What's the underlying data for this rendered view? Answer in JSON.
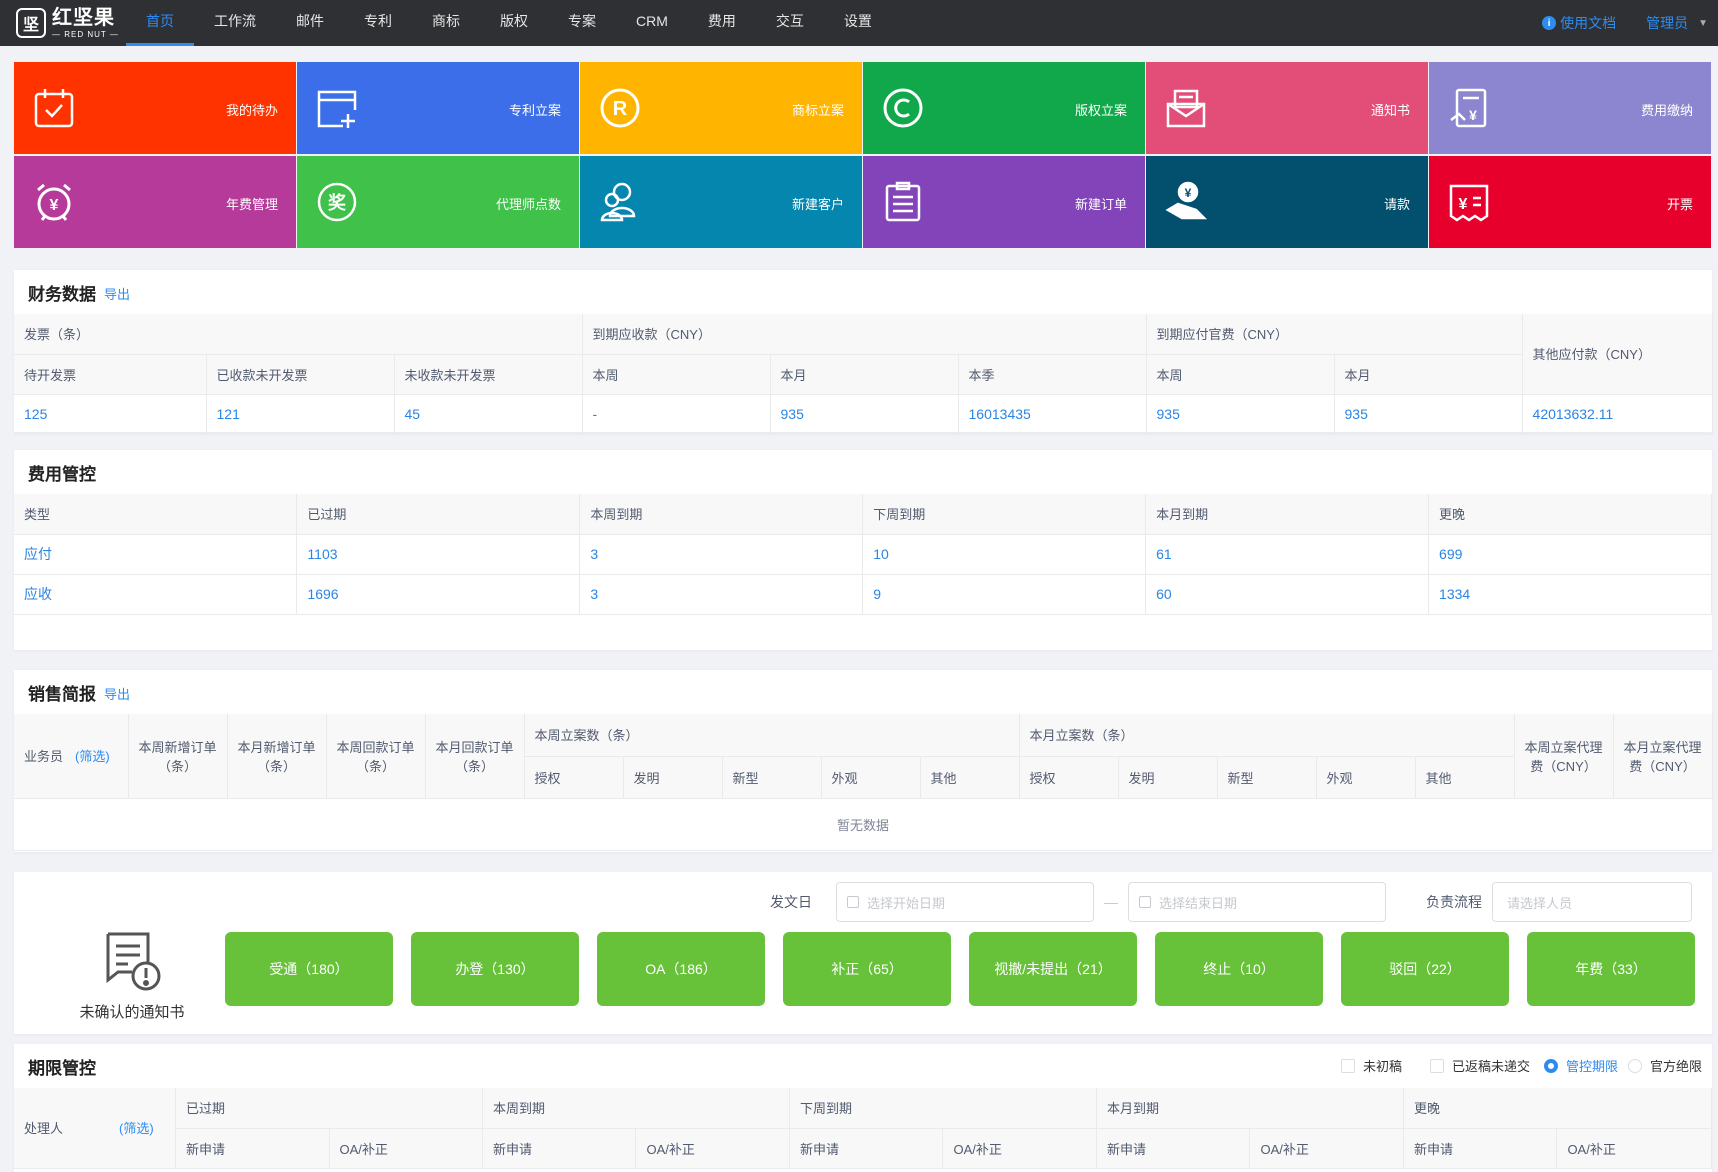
{
  "app": {
    "logo_cn": "红坚果",
    "logo_en": "— RED NUT —",
    "logo_mark": "坚"
  },
  "nav": {
    "items": [
      {
        "label": "首页",
        "active": true
      },
      {
        "label": "工作流"
      },
      {
        "label": "邮件"
      },
      {
        "label": "专利"
      },
      {
        "label": "商标"
      },
      {
        "label": "版权"
      },
      {
        "label": "专案"
      },
      {
        "label": "CRM"
      },
      {
        "label": "费用"
      },
      {
        "label": "交互"
      },
      {
        "label": "设置"
      }
    ],
    "doc": "使用文档",
    "admin": "管理员"
  },
  "tiles": [
    {
      "label": "我的待办",
      "color": "#ff3300",
      "icon": "calendar-check-icon"
    },
    {
      "label": "专利立案",
      "color": "#3b6ee8",
      "icon": "window-add-icon"
    },
    {
      "label": "商标立案",
      "color": "#ffb400",
      "icon": "registered-icon"
    },
    {
      "label": "版权立案",
      "color": "#10a84a",
      "icon": "copyright-icon"
    },
    {
      "label": "通知书",
      "color": "#e24e77",
      "icon": "mail-icon"
    },
    {
      "label": "费用缴纳",
      "color": "#8b86cf",
      "icon": "bill-pay-icon"
    },
    {
      "label": "年费管理",
      "color": "#b63a9a",
      "icon": "alarm-yen-icon"
    },
    {
      "label": "代理师点数",
      "color": "#3fc14a",
      "icon": "award-icon"
    },
    {
      "label": "新建客户",
      "color": "#0586af",
      "icon": "users-icon"
    },
    {
      "label": "新建订单",
      "color": "#8244b8",
      "icon": "order-list-icon"
    },
    {
      "label": "请款",
      "color": "#03506e",
      "icon": "hand-money-icon"
    },
    {
      "label": "开票",
      "color": "#e8002d",
      "icon": "invoice-icon"
    }
  ],
  "finance": {
    "title": "财务数据",
    "export": "导出",
    "g1": "发票（条）",
    "g2": "到期应收款（CNY）",
    "g3": "到期应付官费（CNY）",
    "g4": "其他应付款（CNY）",
    "cols": [
      "待开发票",
      "已收款未开发票",
      "未收款未开发票",
      "本周",
      "本月",
      "本季",
      "本周",
      "本月"
    ],
    "values": [
      "125",
      "121",
      "45",
      "-",
      "935",
      "16013435",
      "935",
      "935",
      "42013632.11"
    ]
  },
  "fee": {
    "title": "费用管控",
    "headers": [
      "类型",
      "已过期",
      "本周到期",
      "下周到期",
      "本月到期",
      "更晚"
    ],
    "rows": [
      [
        "应付",
        "1103",
        "3",
        "10",
        "61",
        "699"
      ],
      [
        "应收",
        "1696",
        "3",
        "9",
        "60",
        "1334"
      ]
    ]
  },
  "sales": {
    "title": "销售简报",
    "export": "导出",
    "salesman": "业务员",
    "filter": "(筛选)",
    "c1": "本周新增订单（条）",
    "c2": "本月新增订单（条）",
    "c3": "本周回款订单（条）",
    "c4": "本月回款订单（条）",
    "week": "本周立案数（条）",
    "month": "本月立案数（条）",
    "sub": [
      "授权",
      "发明",
      "新型",
      "外观",
      "其他"
    ],
    "fee_week": "本周立案代理费（CNY）",
    "fee_month": "本月立案代理费（CNY）",
    "empty": "暂无数据"
  },
  "notice": {
    "date_label": "发文日",
    "start_ph": "选择开始日期",
    "end_ph": "选择结束日期",
    "sep": "—",
    "flow_label": "负责流程",
    "person_ph": "请选择人员",
    "caption": "未确认的通知书",
    "buttons": [
      "受通（180）",
      "办登（130）",
      "OA（186）",
      "补正（65）",
      "视撤/未提出（21）",
      "终止（10）",
      "驳回（22）",
      "年费（33）"
    ]
  },
  "deadline": {
    "title": "期限管控",
    "opts": [
      "未初稿",
      "已返稿未递交",
      "管控期限",
      "官方绝限"
    ],
    "handler": "处理人",
    "filter": "(筛选)",
    "groups": [
      "已过期",
      "本周到期",
      "下周到期",
      "本月到期",
      "更晚"
    ],
    "sub": [
      "新申请",
      "OA/补正"
    ]
  }
}
